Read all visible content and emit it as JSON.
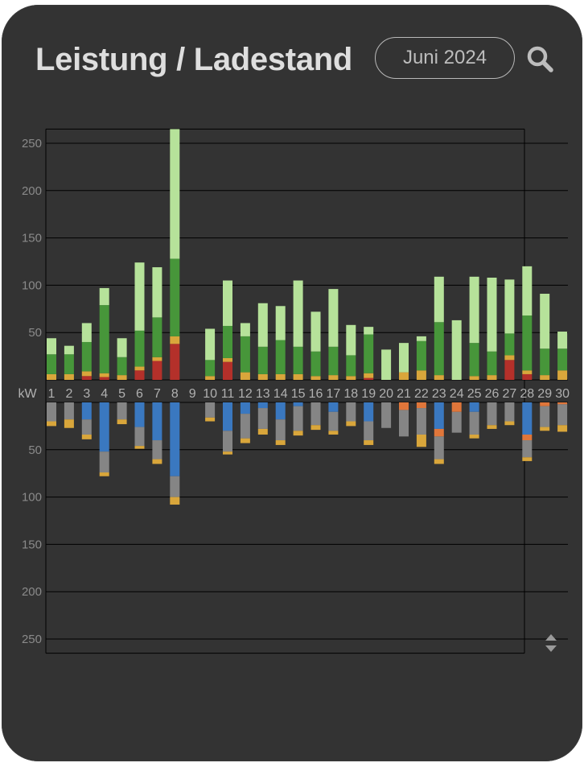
{
  "header": {
    "title": "Leistung / Ladestand",
    "period_label": "Juni 2024",
    "search_icon": "search-icon"
  },
  "controls": {
    "stepper_icon": "up-down-stepper-icon"
  },
  "colors": {
    "background": "#333333",
    "grid": "#000000",
    "tick_text": "#8a8a8a",
    "axis_label_text": "#b0b0b0",
    "light_green": "#b6e29a",
    "green": "#47963a",
    "yellow": "#d9a63b",
    "red": "#b4302a",
    "blue": "#3a78c0",
    "gray": "#858585",
    "orange": "#e0763a"
  },
  "chart_data": {
    "type": "bar",
    "stacked": true,
    "unit_label": "kW",
    "categories": [
      "1",
      "2",
      "3",
      "4",
      "5",
      "6",
      "7",
      "8",
      "9",
      "10",
      "11",
      "12",
      "13",
      "14",
      "15",
      "16",
      "17",
      "18",
      "19",
      "20",
      "21",
      "22",
      "23",
      "24",
      "25",
      "26",
      "27",
      "28",
      "29",
      "30"
    ],
    "y_ticks_positive": [
      50,
      100,
      150,
      200,
      250
    ],
    "y_ticks_negative": [
      50,
      100,
      150,
      200,
      250
    ],
    "ylim_positive": [
      0,
      265
    ],
    "ylim_negative": [
      0,
      265
    ],
    "grid": true,
    "positive_series": [
      {
        "key": "red",
        "color": "#b4302a",
        "values": [
          0,
          0,
          4,
          3,
          0,
          10,
          20,
          38,
          0,
          0,
          19,
          0,
          0,
          0,
          0,
          0,
          0,
          0,
          2,
          0,
          0,
          0,
          0,
          0,
          0,
          0,
          21,
          6,
          0,
          0
        ]
      },
      {
        "key": "yellow",
        "color": "#d9a63b",
        "values": [
          6,
          6,
          5,
          4,
          5,
          4,
          4,
          8,
          0,
          4,
          4,
          8,
          6,
          6,
          6,
          4,
          5,
          4,
          5,
          0,
          8,
          10,
          5,
          0,
          4,
          5,
          5,
          4,
          5,
          10
        ]
      },
      {
        "key": "green",
        "color": "#47963a",
        "values": [
          21,
          21,
          31,
          72,
          19,
          38,
          42,
          82,
          0,
          17,
          34,
          38,
          29,
          36,
          29,
          26,
          30,
          22,
          41,
          0,
          0,
          31,
          56,
          0,
          35,
          25,
          23,
          58,
          28,
          23
        ]
      },
      {
        "key": "light_green",
        "color": "#b6e29a",
        "values": [
          17,
          9,
          20,
          18,
          20,
          72,
          53,
          137,
          0,
          33,
          48,
          14,
          46,
          36,
          70,
          42,
          61,
          32,
          8,
          32,
          31,
          5,
          48,
          63,
          70,
          78,
          57,
          52,
          58,
          18
        ]
      }
    ],
    "negative_series": [
      {
        "key": "blue",
        "color": "#3a78c0",
        "values": [
          0,
          0,
          18,
          52,
          0,
          26,
          40,
          78,
          0,
          0,
          30,
          12,
          6,
          18,
          4,
          0,
          10,
          0,
          20,
          0,
          0,
          0,
          28,
          0,
          10,
          0,
          0,
          34,
          0,
          0
        ]
      },
      {
        "key": "orange",
        "color": "#e0763a",
        "values": [
          0,
          0,
          0,
          0,
          0,
          0,
          0,
          0,
          0,
          0,
          0,
          0,
          0,
          0,
          0,
          0,
          0,
          0,
          0,
          0,
          8,
          6,
          8,
          10,
          0,
          0,
          0,
          6,
          4,
          2
        ]
      },
      {
        "key": "gray",
        "color": "#858585",
        "values": [
          20,
          18,
          16,
          22,
          18,
          20,
          20,
          22,
          0,
          16,
          22,
          26,
          22,
          22,
          26,
          24,
          20,
          20,
          20,
          27,
          28,
          28,
          24,
          22,
          24,
          24,
          20,
          18,
          22,
          22
        ]
      },
      {
        "key": "yellow",
        "color": "#d9a63b",
        "values": [
          5,
          9,
          5,
          4,
          5,
          3,
          5,
          8,
          0,
          4,
          3,
          5,
          6,
          5,
          5,
          5,
          4,
          5,
          5,
          0,
          0,
          13,
          5,
          0,
          4,
          4,
          4,
          4,
          4,
          7
        ]
      }
    ]
  }
}
